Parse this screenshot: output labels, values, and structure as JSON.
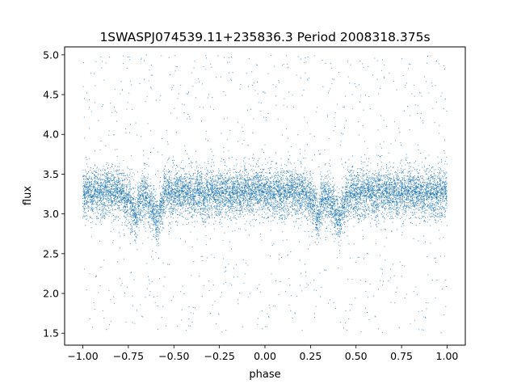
{
  "chart_data": {
    "type": "scatter",
    "title": "1SWASPJ074539.11+235836.3 Period 2008318.375s",
    "xlabel": "phase",
    "ylabel": "flux",
    "xlim": [
      -1.1,
      1.1
    ],
    "ylim": [
      1.35,
      5.1
    ],
    "xticks": [
      -1.0,
      -0.75,
      -0.5,
      -0.25,
      0.0,
      0.25,
      0.5,
      0.75,
      1.0
    ],
    "xtick_labels": [
      "−1.00",
      "−0.75",
      "−0.50",
      "−0.25",
      "0.00",
      "0.25",
      "0.50",
      "0.75",
      "1.00"
    ],
    "yticks": [
      1.5,
      2.0,
      2.5,
      3.0,
      3.5,
      4.0,
      4.5,
      5.0
    ],
    "ytick_labels": [
      "1.5",
      "2.0",
      "2.5",
      "3.0",
      "3.5",
      "4.0",
      "4.5",
      "5.0"
    ],
    "grid": false,
    "marker_color": "#1f77b4",
    "series": [
      {
        "name": "",
        "description_of_distribution": "dense band",
        "x": [
          -0.99,
          -0.97,
          -0.95,
          -0.93,
          -0.91,
          -0.89,
          -0.87,
          -0.85,
          -0.83,
          -0.81,
          -0.79,
          -0.77,
          -0.75,
          -0.73,
          -0.71,
          -0.69,
          -0.67,
          -0.65,
          -0.63,
          -0.61,
          -0.59,
          -0.57,
          -0.55,
          -0.53,
          -0.51,
          -0.49,
          -0.47,
          -0.45,
          -0.43,
          -0.41,
          -0.39,
          -0.37,
          -0.35,
          -0.33,
          -0.31,
          -0.29,
          -0.27,
          -0.25,
          -0.23,
          -0.21,
          -0.19,
          -0.17,
          -0.15,
          -0.13,
          -0.11,
          -0.09,
          -0.07,
          -0.05,
          -0.03,
          -0.01,
          0.01,
          0.03,
          0.05,
          0.07,
          0.09,
          0.11,
          0.13,
          0.15,
          0.17,
          0.19,
          0.21,
          0.23,
          0.25,
          0.27,
          0.29,
          0.31,
          0.33,
          0.35,
          0.37,
          0.39,
          0.41,
          0.43,
          0.45,
          0.47,
          0.49,
          0.51,
          0.53,
          0.55,
          0.57,
          0.59,
          0.61,
          0.63,
          0.65,
          0.67,
          0.69,
          0.71,
          0.73,
          0.75,
          0.77,
          0.79,
          0.81,
          0.83,
          0.85,
          0.87,
          0.89,
          0.91,
          0.93,
          0.95,
          0.97,
          0.99
        ],
        "y": [
          3.25,
          3.28,
          3.22,
          3.3,
          3.26,
          3.24,
          3.29,
          3.27,
          3.23,
          3.31,
          3.26,
          3.2,
          3.18,
          3.05,
          2.95,
          3.15,
          3.22,
          3.2,
          3.12,
          3.0,
          2.9,
          3.1,
          3.25,
          3.27,
          3.22,
          3.26,
          3.24,
          3.28,
          3.25,
          3.27,
          3.22,
          3.3,
          3.26,
          3.2,
          3.24,
          3.27,
          3.23,
          3.25,
          3.26,
          3.28,
          3.22,
          3.25,
          3.27,
          3.24,
          3.29,
          3.26,
          3.25,
          3.28,
          3.3,
          3.27,
          3.26,
          3.29,
          3.24,
          3.28,
          3.25,
          3.23,
          3.27,
          3.3,
          3.26,
          3.24,
          3.28,
          3.22,
          3.18,
          3.1,
          2.95,
          3.12,
          3.2,
          3.18,
          3.1,
          3.0,
          2.92,
          3.08,
          3.22,
          3.26,
          3.24,
          3.25,
          3.27,
          3.23,
          3.28,
          3.26,
          3.22,
          3.3,
          3.25,
          3.27,
          3.24,
          3.28,
          3.23,
          3.26,
          3.25,
          3.29,
          3.24,
          3.27,
          3.26,
          3.22,
          3.28,
          3.25,
          3.24,
          3.27,
          3.26,
          3.25
        ]
      }
    ]
  }
}
